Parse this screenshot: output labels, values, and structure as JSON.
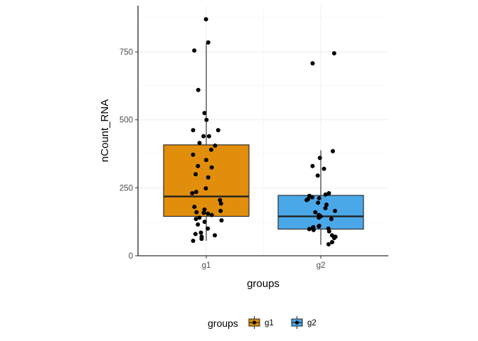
{
  "chart_data": {
    "type": "box",
    "title": "",
    "xlabel": "groups",
    "ylabel": "nCount_RNA",
    "ylim": [
      0,
      920
    ],
    "yticks": [
      0,
      250,
      500,
      750
    ],
    "categories": [
      "g1",
      "g2"
    ],
    "colors": {
      "g1": "#E08E0B",
      "g2": "#4AA8E8"
    },
    "grid": "major-minor-light",
    "legend": {
      "title": "groups",
      "position": "bottom",
      "entries": [
        "g1",
        "g2"
      ]
    },
    "boxes": [
      {
        "name": "g1",
        "q1": 145,
        "median": 218,
        "q3": 408,
        "whisker_low": 55,
        "whisker_high": 782
      },
      {
        "name": "g2",
        "q1": 98,
        "median": 145,
        "q3": 222,
        "whisker_low": 40,
        "whisker_high": 388
      }
    ],
    "points": [
      {
        "group": "g1",
        "values": [
          870,
          785,
          755,
          610,
          525,
          500,
          462,
          462,
          440,
          440,
          415,
          405,
          390,
          372,
          352,
          330,
          325,
          300,
          288,
          248,
          235,
          230,
          205,
          192,
          180,
          170,
          165,
          160,
          158,
          155,
          150,
          140,
          135,
          130,
          125,
          115,
          100,
          85,
          80,
          75,
          70,
          62,
          55
        ]
      },
      {
        "group": "g2",
        "values": [
          745,
          708,
          385,
          360,
          330,
          320,
          295,
          230,
          225,
          220,
          215,
          212,
          208,
          205,
          195,
          188,
          175,
          165,
          160,
          150,
          145,
          140,
          135,
          110,
          108,
          105,
          102,
          100,
          98,
          95,
          90,
          75,
          70,
          65,
          50,
          42
        ]
      }
    ]
  }
}
